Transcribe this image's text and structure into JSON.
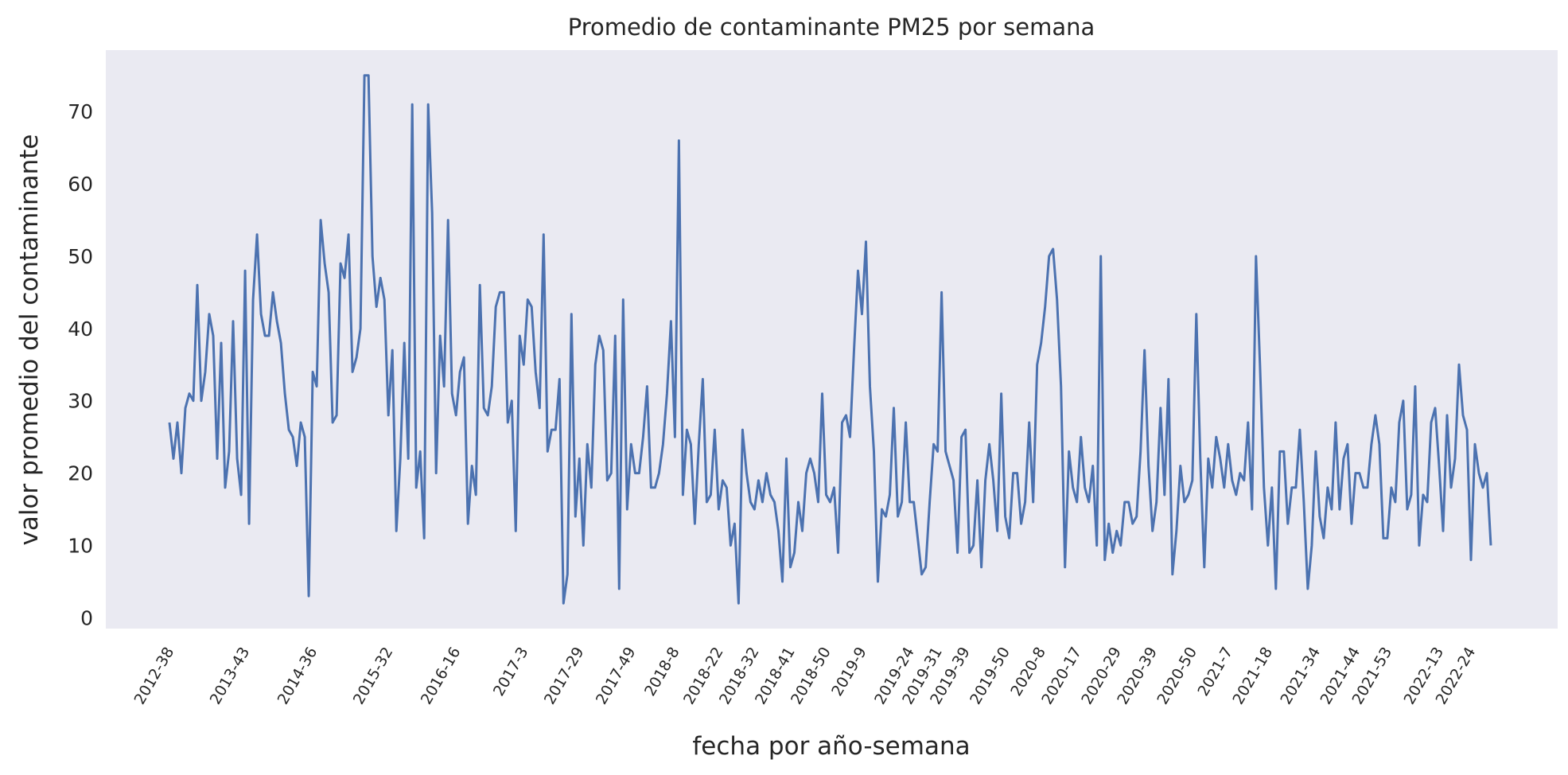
{
  "chart_data": {
    "type": "line",
    "title": "Promedio de contaminante PM25 por semana",
    "xlabel": "fecha por año-semana",
    "ylabel": "valor promedio del contaminante",
    "ylim": [
      -1.5,
      78.5
    ],
    "yticks": [
      0,
      10,
      20,
      30,
      40,
      50,
      60,
      70
    ],
    "xticks": [
      {
        "label": "2012-38",
        "index": 0
      },
      {
        "label": "2013-43",
        "index": 19
      },
      {
        "label": "2014-36",
        "index": 36
      },
      {
        "label": "2015-32",
        "index": 55
      },
      {
        "label": "2016-16",
        "index": 72
      },
      {
        "label": "2017-3",
        "index": 89
      },
      {
        "label": "2017-29",
        "index": 103
      },
      {
        "label": "2017-49",
        "index": 116
      },
      {
        "label": "2018-8",
        "index": 127
      },
      {
        "label": "2018-22",
        "index": 138
      },
      {
        "label": "2018-32",
        "index": 147
      },
      {
        "label": "2018-41",
        "index": 156
      },
      {
        "label": "2018-50",
        "index": 165
      },
      {
        "label": "2019-9",
        "index": 174
      },
      {
        "label": "2019-24",
        "index": 186
      },
      {
        "label": "2019-31",
        "index": 193
      },
      {
        "label": "2019-39",
        "index": 200
      },
      {
        "label": "2019-50",
        "index": 210
      },
      {
        "label": "2020-8",
        "index": 219
      },
      {
        "label": "2020-17",
        "index": 228
      },
      {
        "label": "2020-29",
        "index": 238
      },
      {
        "label": "2020-39",
        "index": 247
      },
      {
        "label": "2020-50",
        "index": 257
      },
      {
        "label": "2021-7",
        "index": 266
      },
      {
        "label": "2021-18",
        "index": 276
      },
      {
        "label": "2021-34",
        "index": 288
      },
      {
        "label": "2021-44",
        "index": 298
      },
      {
        "label": "2021-53",
        "index": 306
      },
      {
        "label": "2022-13",
        "index": 319
      },
      {
        "label": "2022-24",
        "index": 327
      }
    ],
    "grid": false,
    "series": [
      {
        "color": "#4c72b0",
        "values": [
          27,
          22,
          27,
          20,
          29,
          31,
          30,
          46,
          30,
          34,
          42,
          39,
          22,
          38,
          18,
          23,
          41,
          22,
          17,
          48,
          13,
          44,
          53,
          42,
          39,
          39,
          45,
          41,
          38,
          31,
          26,
          25,
          21,
          27,
          25,
          3,
          34,
          32,
          55,
          49,
          45,
          27,
          28,
          49,
          47,
          53,
          34,
          36,
          40,
          75,
          75,
          50,
          43,
          47,
          44,
          28,
          37,
          12,
          22,
          38,
          22,
          71,
          18,
          23,
          11,
          71,
          56,
          20,
          39,
          32,
          55,
          31,
          28,
          34,
          36,
          13,
          21,
          17,
          46,
          29,
          28,
          32,
          43,
          45,
          45,
          27,
          30,
          12,
          39,
          35,
          44,
          43,
          34,
          29,
          53,
          23,
          26,
          26,
          33,
          2,
          6,
          42,
          14,
          22,
          10,
          24,
          18,
          35,
          39,
          37,
          19,
          20,
          39,
          4,
          44,
          15,
          24,
          20,
          20,
          25,
          32,
          18,
          18,
          20,
          24,
          31,
          41,
          25,
          66,
          17,
          26,
          24,
          13,
          24,
          33,
          16,
          17,
          26,
          15,
          19,
          18,
          10,
          13,
          2,
          26,
          20,
          16,
          15,
          19,
          16,
          20,
          17,
          16,
          12,
          5,
          22,
          7,
          9,
          16,
          12,
          20,
          22,
          20,
          16,
          31,
          17,
          16,
          18,
          9,
          27,
          28,
          25,
          37,
          48,
          42,
          52,
          32,
          23,
          5,
          15,
          14,
          17,
          29,
          14,
          16,
          27,
          16,
          16,
          11,
          6,
          7,
          16,
          24,
          23,
          45,
          23,
          21,
          19,
          9,
          25,
          26,
          9,
          10,
          19,
          7,
          19,
          24,
          19,
          12,
          31,
          14,
          11,
          20,
          20,
          13,
          16,
          27,
          16,
          35,
          38,
          43,
          50,
          51,
          44,
          32,
          7,
          23,
          18,
          16,
          25,
          18,
          16,
          21,
          10,
          50,
          8,
          13,
          9,
          12,
          10,
          16,
          16,
          13,
          14,
          23,
          37,
          21,
          12,
          16,
          29,
          17,
          33,
          6,
          12,
          21,
          16,
          17,
          19,
          42,
          22,
          7,
          22,
          18,
          25,
          22,
          18,
          24,
          19,
          17,
          20,
          19,
          27,
          15,
          50,
          35,
          18,
          10,
          18,
          4,
          23,
          23,
          13,
          18,
          18,
          26,
          16,
          4,
          10,
          23,
          14,
          11,
          18,
          15,
          27,
          15,
          22,
          24,
          13,
          20,
          20,
          18,
          18,
          24,
          28,
          24,
          11,
          11,
          18,
          16,
          27,
          30,
          15,
          17,
          32,
          10,
          17,
          16,
          27,
          29,
          21,
          12,
          28,
          18,
          22,
          35,
          28,
          26,
          8,
          24,
          20,
          18,
          20,
          10
        ]
      }
    ]
  }
}
